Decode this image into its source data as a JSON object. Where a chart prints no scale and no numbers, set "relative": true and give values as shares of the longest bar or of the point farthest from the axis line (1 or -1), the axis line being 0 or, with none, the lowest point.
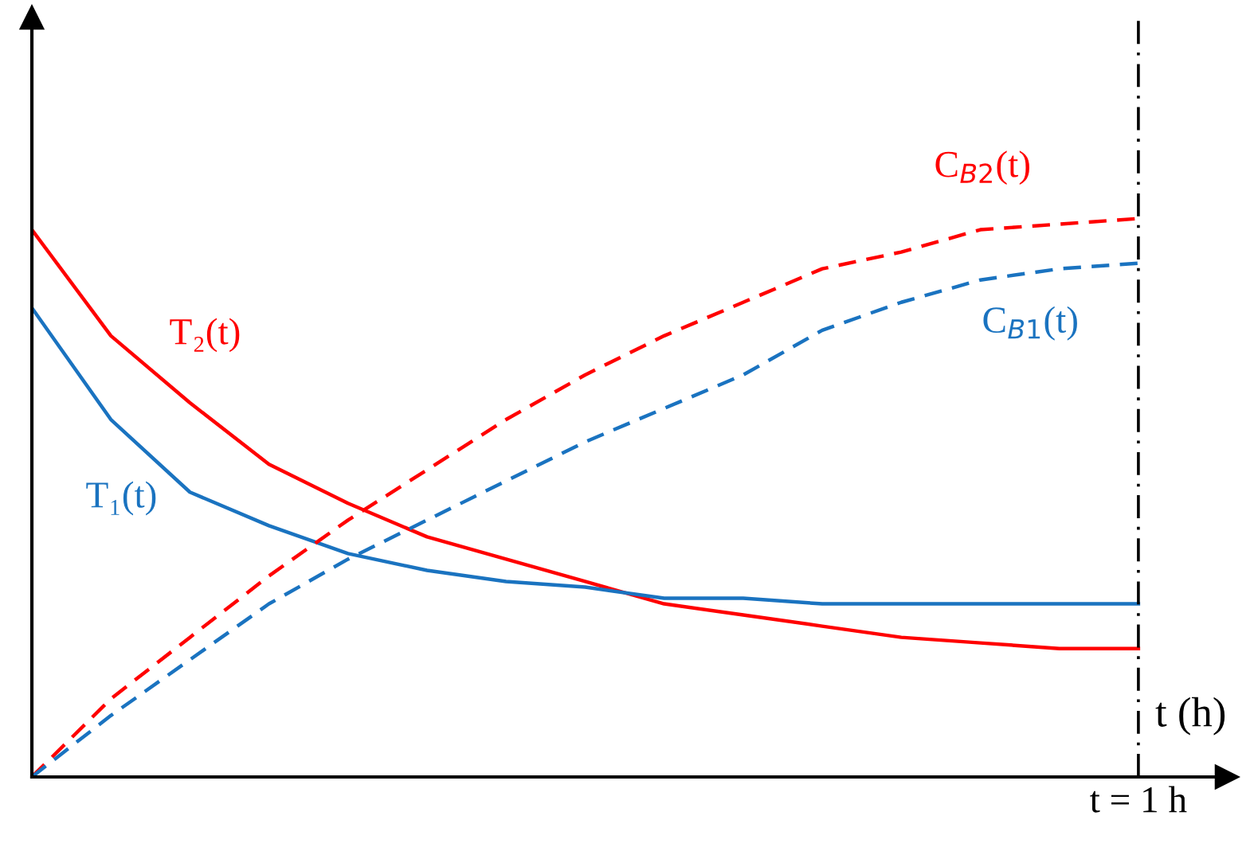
{
  "chart_data": {
    "type": "line",
    "relative": true,
    "xlabel": "t (h)",
    "categories": [
      null,
      null,
      null,
      null,
      null,
      null,
      null,
      null,
      null,
      null,
      null,
      null,
      null,
      null,
      null
    ],
    "series": [
      {
        "name": "T₂(t)",
        "color": "#ff0000",
        "line_style": "solid",
        "values": [
          0.98,
          0.79,
          0.67,
          0.56,
          0.49,
          0.43,
          0.39,
          0.35,
          0.31,
          0.29,
          0.27,
          0.25,
          0.24,
          0.23,
          0.23
        ]
      },
      {
        "name": "T₁(t)",
        "color": "#1a73c0",
        "line_style": "solid",
        "values": [
          0.84,
          0.64,
          0.51,
          0.45,
          0.4,
          0.37,
          0.35,
          0.34,
          0.32,
          0.32,
          0.31,
          0.31,
          0.31,
          0.31,
          0.31
        ]
      },
      {
        "name": "C$_{B2}$(t)",
        "color": "#ff0000",
        "line_style": "dashed",
        "values": [
          0,
          0.14,
          0.25,
          0.36,
          0.46,
          0.55,
          0.64,
          0.72,
          0.79,
          0.85,
          0.91,
          0.94,
          0.98,
          0.99,
          1
        ]
      },
      {
        "name": "C$_{B1}$(t)",
        "color": "#1a73c0",
        "line_style": "dashed",
        "values": [
          0,
          0.11,
          0.21,
          0.31,
          0.39,
          0.46,
          0.53,
          0.6,
          0.66,
          0.72,
          0.8,
          0.85,
          0.89,
          0.91,
          0.92
        ]
      }
    ],
    "ref_lines": [
      {
        "axis": "x",
        "label": "t = 1 h",
        "color": "#000000",
        "line_style": "dashdot"
      }
    ]
  }
}
